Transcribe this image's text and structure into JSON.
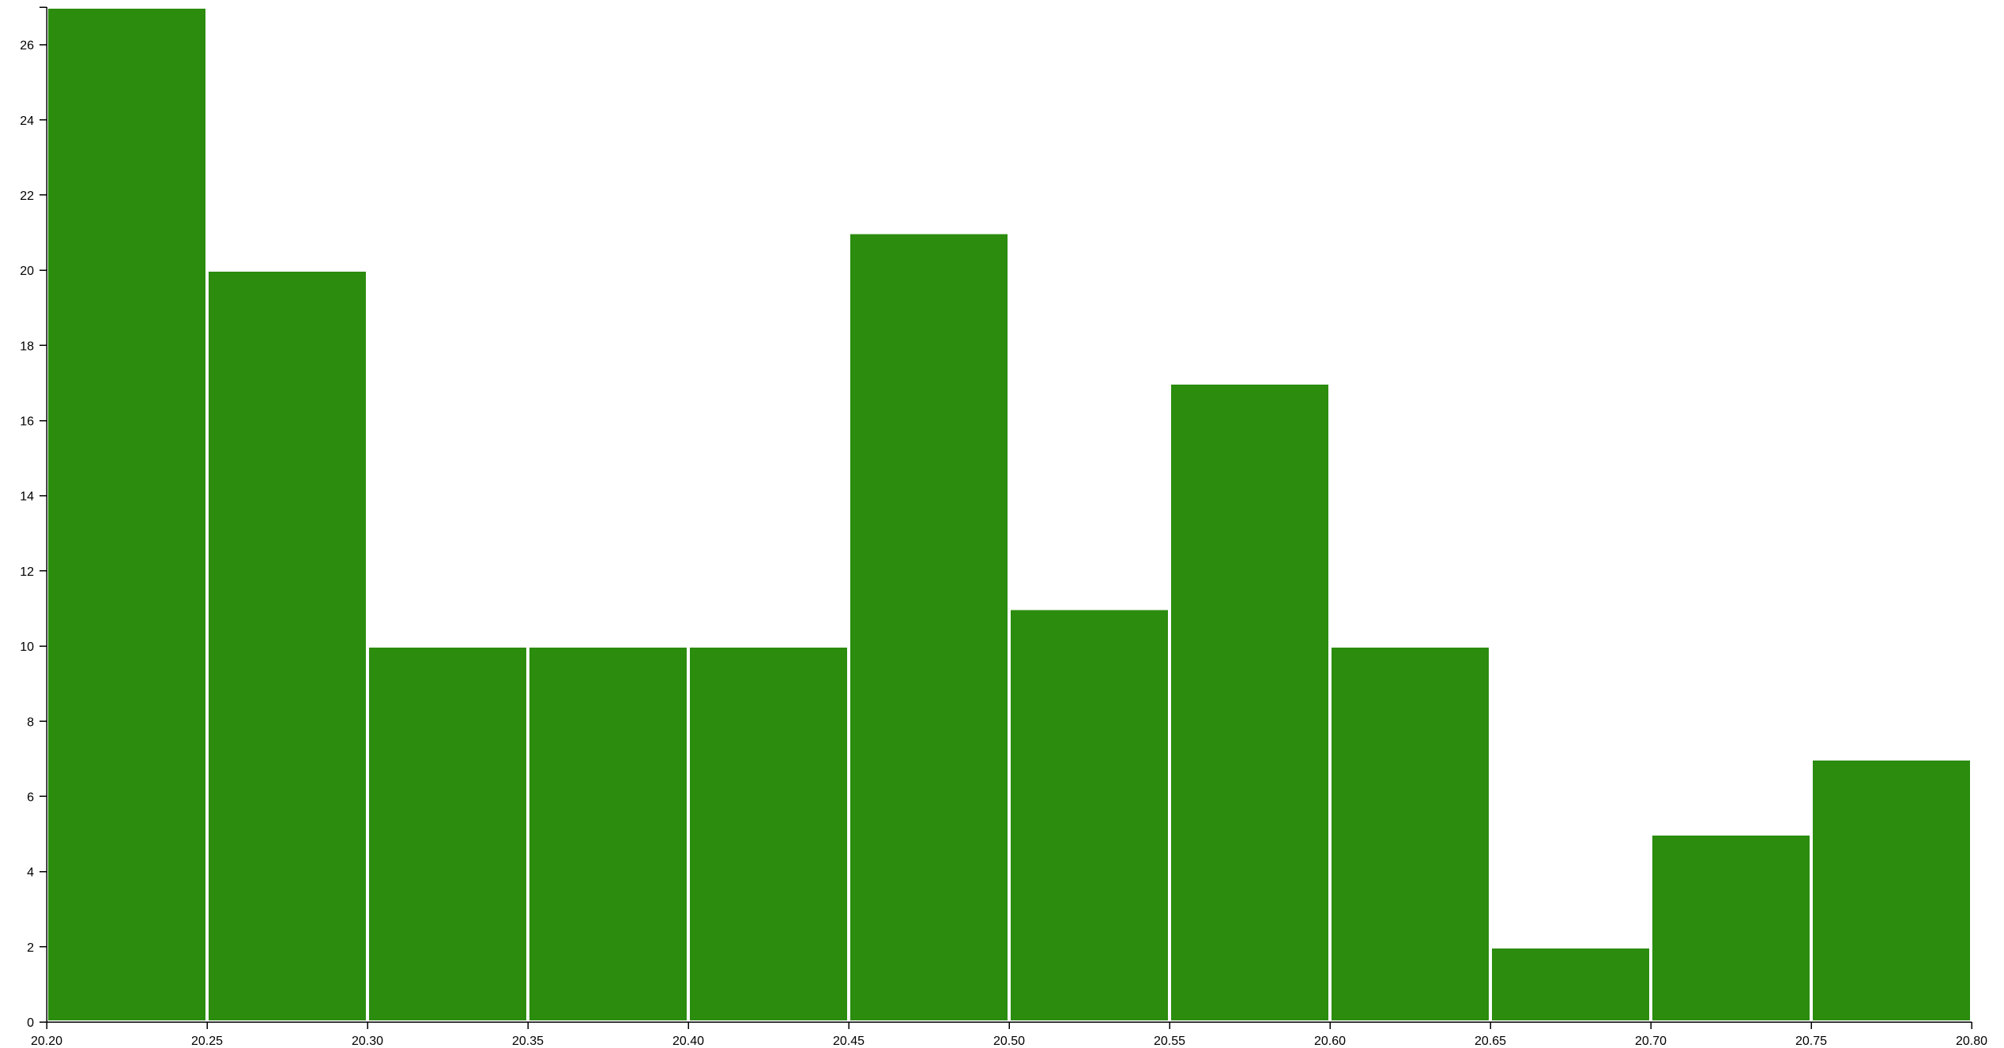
{
  "chart_data": {
    "type": "bar",
    "subtype": "histogram",
    "bin_edges": [
      20.2,
      20.25,
      20.3,
      20.35,
      20.4,
      20.45,
      20.5,
      20.55,
      20.6,
      20.65,
      20.7,
      20.75,
      20.8
    ],
    "values": [
      27,
      20,
      10,
      10,
      10,
      21,
      11,
      17,
      10,
      2,
      5,
      7
    ],
    "x_ticks": [
      "20.20",
      "20.25",
      "20.30",
      "20.35",
      "20.40",
      "20.45",
      "20.50",
      "20.55",
      "20.60",
      "20.65",
      "20.70",
      "20.75",
      "20.80"
    ],
    "y_ticks": [
      "0",
      "2",
      "4",
      "6",
      "8",
      "10",
      "12",
      "14",
      "16",
      "18",
      "20",
      "22",
      "24",
      "26"
    ],
    "xlim": [
      20.2,
      20.8
    ],
    "ylim": [
      0,
      27
    ],
    "title": "",
    "xlabel": "",
    "ylabel": "",
    "grid": false,
    "bar_color": "#2b8c0e",
    "bar_edge_color": "#ffffff"
  }
}
